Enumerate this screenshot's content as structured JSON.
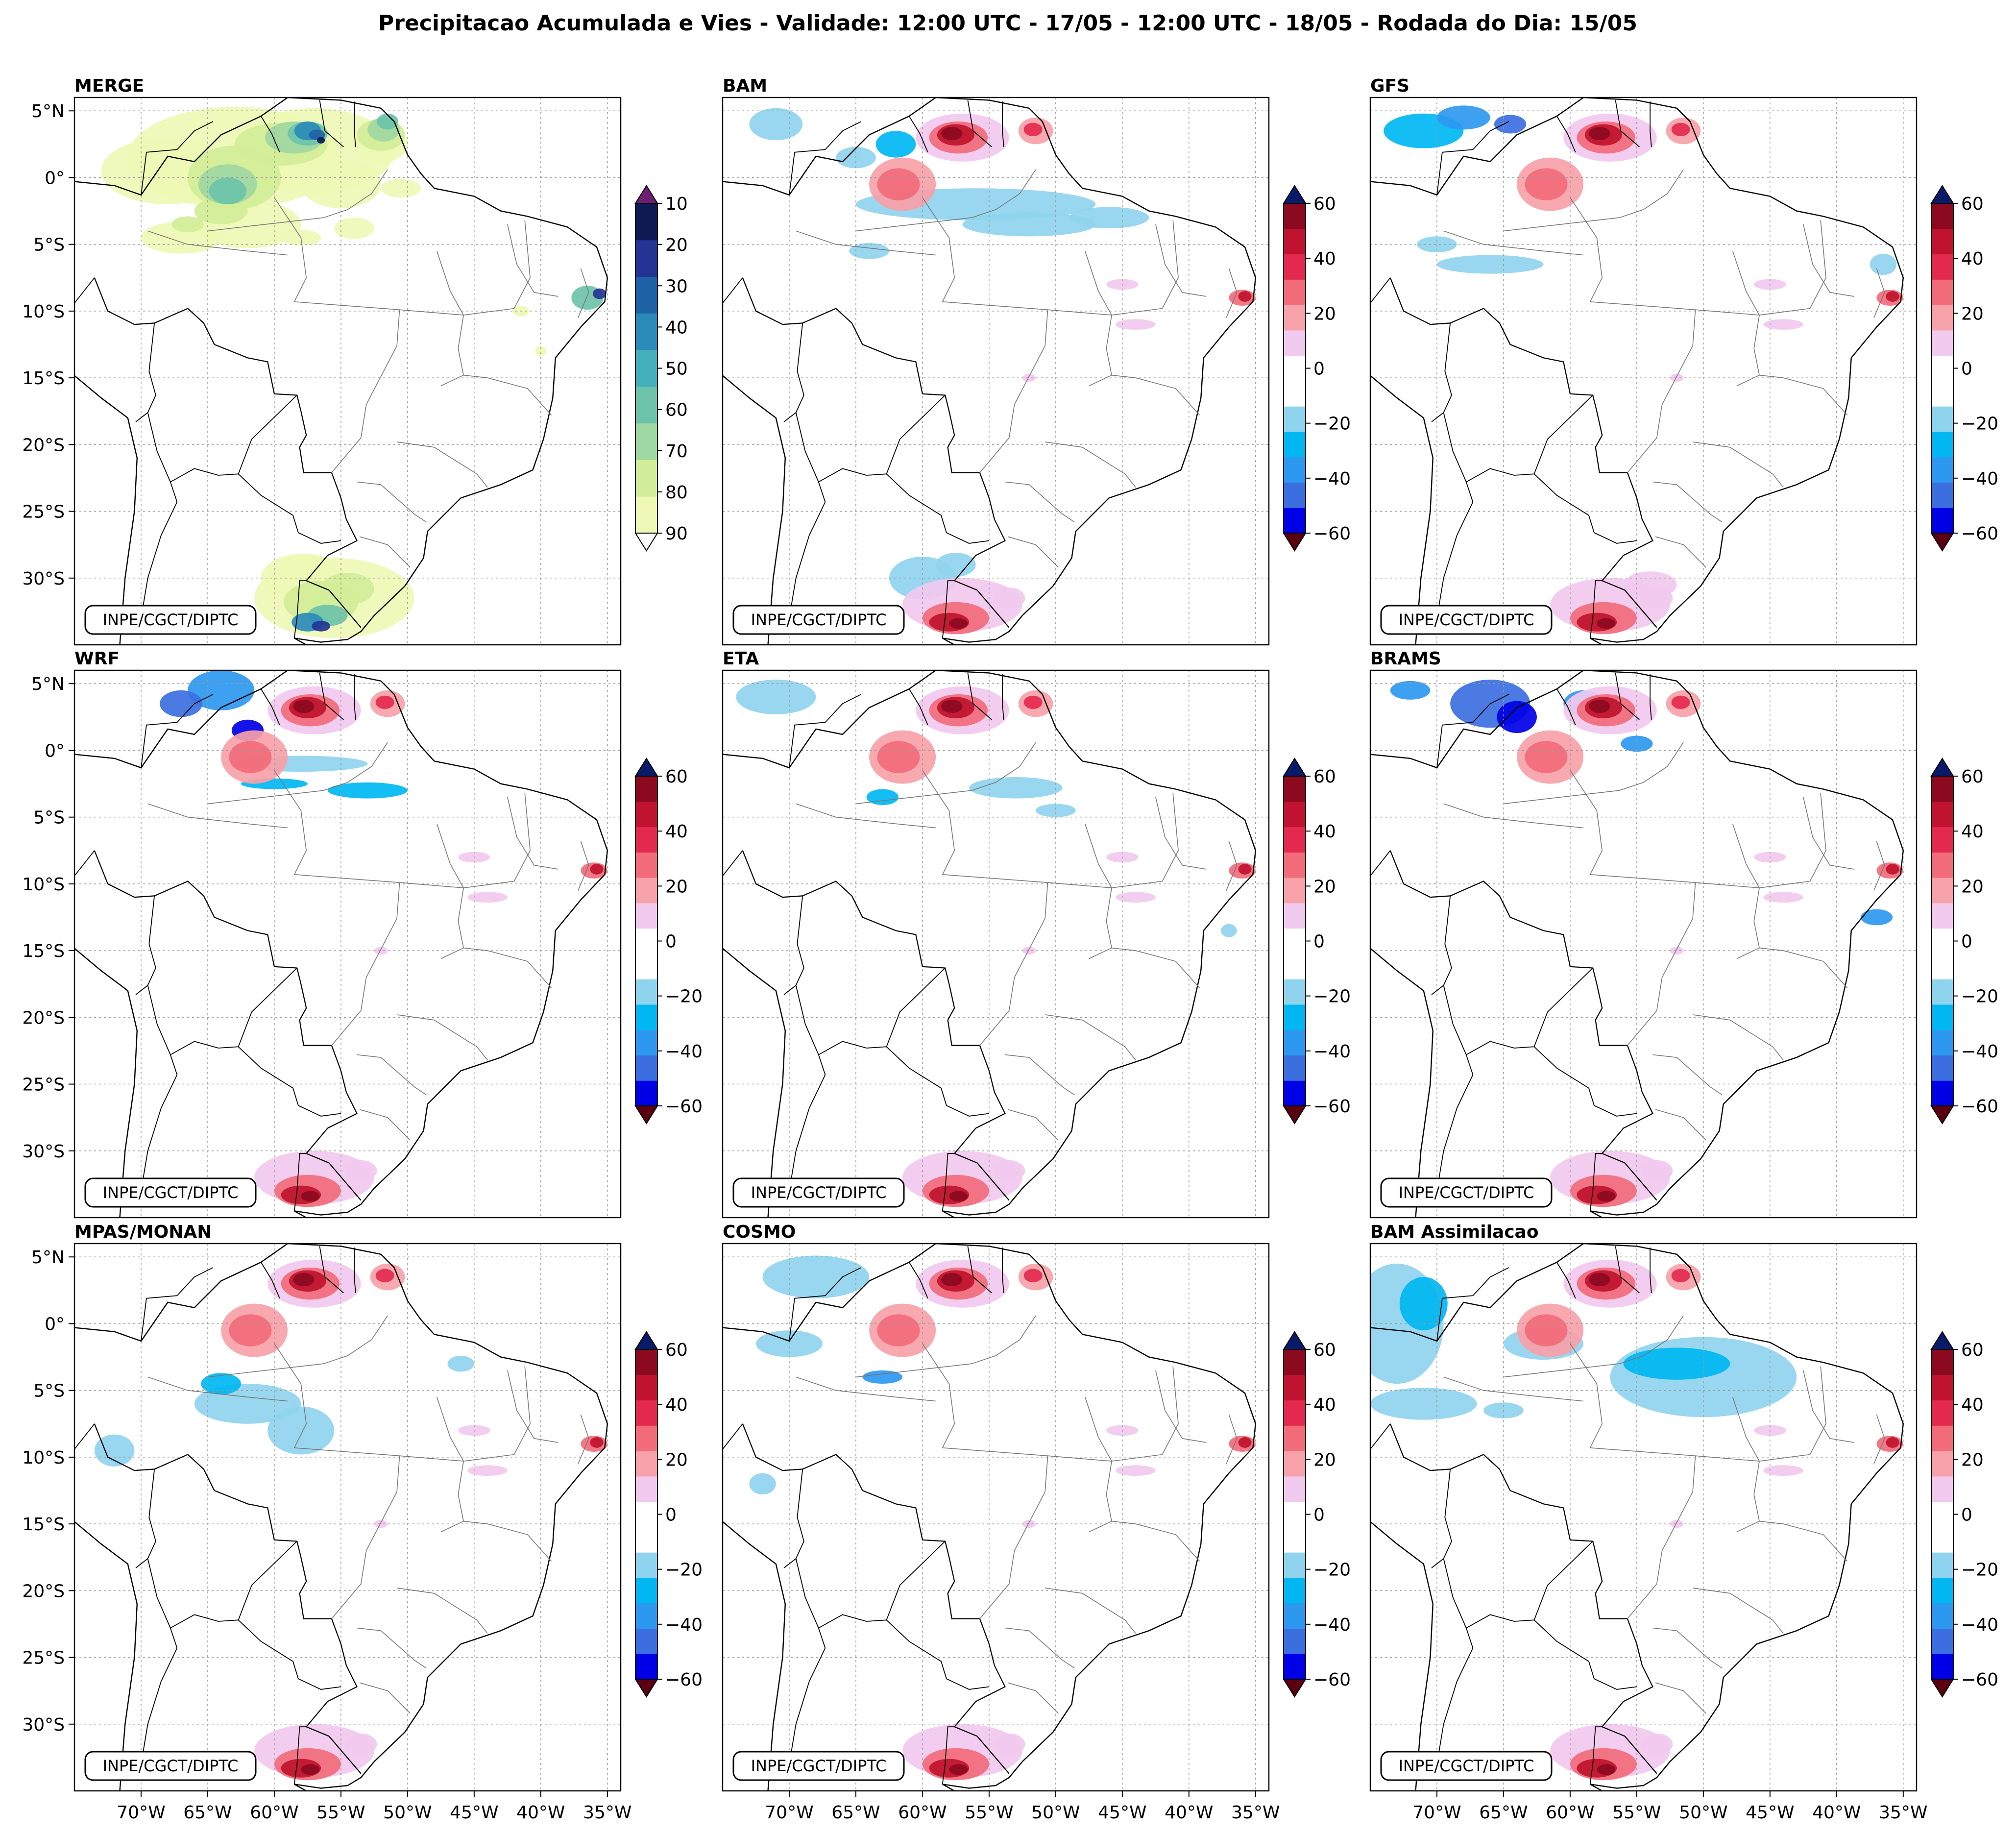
{
  "figure": {
    "title": "Precipitacao Acumulada e Vies - Validade: 12:00 UTC - 17/05 - 12:00 UTC - 18/05 - Rodada do Dia: 15/05",
    "credit": "INPE/CGCT/DIPTC"
  },
  "axes": {
    "lat_ticks": [
      "5°N",
      "0°",
      "5°S",
      "10°S",
      "15°S",
      "20°S",
      "25°S",
      "30°S"
    ],
    "lon_ticks": [
      "70°W",
      "65°W",
      "60°W",
      "55°W",
      "50°W",
      "45°W",
      "40°W",
      "35°W"
    ]
  },
  "colorbars": {
    "merge": {
      "labels": [
        "10",
        "20",
        "30",
        "40",
        "50",
        "60",
        "70",
        "80",
        "90"
      ],
      "colors": [
        "#eef9b5",
        "#d2ed98",
        "#9fd8a2",
        "#6cc3a9",
        "#45afbb",
        "#2a8bba",
        "#1f62a6",
        "#253494",
        "#0d1a54"
      ],
      "over_color": "#6e1e73",
      "under_color": "#ffffff"
    },
    "bias": {
      "labels": [
        "60",
        "40",
        "20",
        "0",
        "−20",
        "−40",
        "−60"
      ],
      "colors": [
        "#0000e6",
        "#3b6fe0",
        "#2d98f0",
        "#00b7f2",
        "#8fd4ee",
        "#ffffff",
        "#ffffff",
        "#f2c9ef",
        "#f7a1a8",
        "#f26b79",
        "#e32a4e",
        "#c0132f",
        "#8b0a20"
      ],
      "over_color": "#0a1a6b",
      "under_color": "#5a0010"
    }
  },
  "panels": [
    {
      "title": "MERGE",
      "cbar": "merge"
    },
    {
      "title": "BAM",
      "cbar": "bias"
    },
    {
      "title": "GFS",
      "cbar": "bias"
    },
    {
      "title": "WRF",
      "cbar": "bias"
    },
    {
      "title": "ETA",
      "cbar": "bias"
    },
    {
      "title": "BRAMS",
      "cbar": "bias"
    },
    {
      "title": "MPAS/MONAN",
      "cbar": "bias"
    },
    {
      "title": "COSMO",
      "cbar": "bias"
    },
    {
      "title": "BAM Assimilacao",
      "cbar": "bias"
    }
  ]
}
